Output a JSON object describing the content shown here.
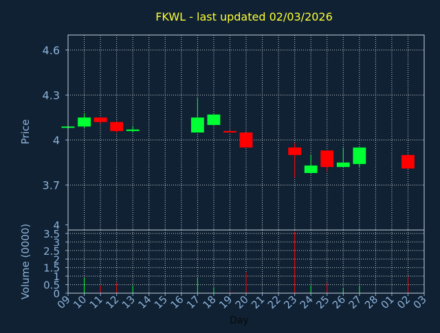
{
  "chart_data": {
    "type": "candlestick",
    "title": "FKWL - last updated 02/03/2026",
    "colors": {
      "background": "#0f2133",
      "title": "#ffff33",
      "axis_text": "#8fb3d9",
      "up": "#00ff33",
      "down": "#ff0000",
      "frame": "#c8d2dc",
      "grid": "#ffffff"
    },
    "price_panel": {
      "ylabel": "Price",
      "ylim": [
        3.4,
        4.7
      ],
      "yticks": [
        3.7,
        4,
        4.3,
        4.6
      ],
      "ytick_labels": [
        "3.7",
        "4",
        "4.3",
        "4.6"
      ],
      "grid": true
    },
    "volume_panel": {
      "ylabel": "Volume (0000)",
      "ylim": [
        0,
        3.7
      ],
      "yticks": [
        0,
        0.5,
        1,
        1.5,
        2,
        2.5,
        3,
        3.5,
        4
      ],
      "ytick_labels": [
        "0",
        "0.5",
        "1",
        "1.5",
        "2",
        "2.5",
        "3",
        "3.5",
        "4"
      ],
      "grid": true
    },
    "xlabel": "Day",
    "xtick_labels": [
      "09",
      "10",
      "11",
      "12",
      "13",
      "14",
      "15",
      "16",
      "17",
      "18",
      "19",
      "20",
      "21",
      "22",
      "23",
      "24",
      "25",
      "26",
      "27",
      "28",
      "01",
      "02",
      "03"
    ],
    "candles": [
      {
        "day": "09",
        "open": 4.09,
        "high": 4.09,
        "low": 4.09,
        "close": 4.09,
        "volume": 0
      },
      {
        "day": "10",
        "open": 4.09,
        "high": 4.18,
        "low": 4.08,
        "close": 4.15,
        "volume": 0.9
      },
      {
        "day": "11",
        "open": 4.15,
        "high": 4.15,
        "low": 4.11,
        "close": 4.12,
        "volume": 0.45
      },
      {
        "day": "12",
        "open": 4.12,
        "high": 4.12,
        "low": 4.05,
        "close": 4.06,
        "volume": 0.6
      },
      {
        "day": "13",
        "open": 4.06,
        "high": 4.09,
        "low": 4.05,
        "close": 4.07,
        "volume": 0.45
      },
      {
        "day": "17",
        "open": 4.05,
        "high": 4.28,
        "low": 4.05,
        "close": 4.15,
        "volume": 0.9
      },
      {
        "day": "18",
        "open": 4.1,
        "high": 4.17,
        "low": 4.1,
        "close": 4.17,
        "volume": 0.35
      },
      {
        "day": "19",
        "open": 4.06,
        "high": 4.06,
        "low": 4.05,
        "close": 4.05,
        "volume": 0.1
      },
      {
        "day": "20",
        "open": 4.05,
        "high": 4.05,
        "low": 3.95,
        "close": 3.95,
        "volume": 1.2
      },
      {
        "day": "23",
        "open": 3.95,
        "high": 3.98,
        "low": 3.75,
        "close": 3.9,
        "volume": 3.6
      },
      {
        "day": "24",
        "open": 3.78,
        "high": 3.9,
        "low": 3.78,
        "close": 3.83,
        "volume": 0.45
      },
      {
        "day": "25",
        "open": 3.93,
        "high": 3.93,
        "low": 3.79,
        "close": 3.82,
        "volume": 0.6
      },
      {
        "day": "26",
        "open": 3.82,
        "high": 3.95,
        "low": 3.82,
        "close": 3.85,
        "volume": 0.3
      },
      {
        "day": "27",
        "open": 3.84,
        "high": 3.95,
        "low": 3.82,
        "close": 3.95,
        "volume": 0.45
      },
      {
        "day": "02",
        "open": 3.9,
        "high": 3.9,
        "low": 3.81,
        "close": 3.81,
        "volume": 0.95
      }
    ]
  }
}
